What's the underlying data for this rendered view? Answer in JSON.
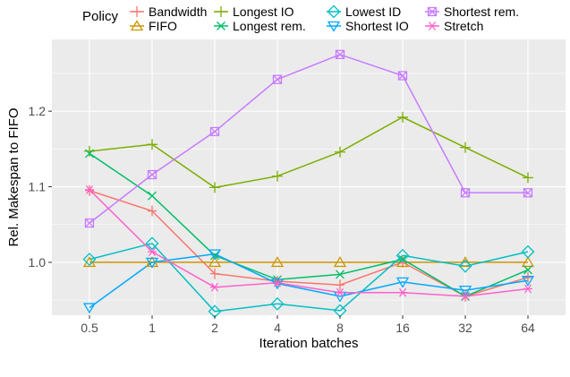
{
  "chart_data": {
    "type": "line",
    "xlabel": "Iteration batches",
    "ylabel": "Rel. Makespan to FIFO",
    "categories": [
      "0.5",
      "1",
      "2",
      "4",
      "8",
      "16",
      "32",
      "64"
    ],
    "ylim": [
      0.93,
      1.295
    ],
    "yticks": [
      1.0,
      1.1,
      1.2
    ],
    "ytick_labels": [
      "1.0",
      "1.1",
      "1.2"
    ],
    "grid": true,
    "legend": {
      "title": "Policy",
      "position": "top"
    },
    "series": [
      {
        "name": "Bandwidth",
        "color": "#F8766D",
        "marker": "plus-bar",
        "values": [
          1.095,
          1.068,
          0.985,
          0.975,
          0.97,
          1.0,
          0.955,
          0.98
        ]
      },
      {
        "name": "FIFO",
        "color": "#CD9600",
        "marker": "triangle-up",
        "values": [
          1.0,
          1.0,
          1.0,
          1.0,
          1.0,
          1.0,
          1.0,
          1.0
        ]
      },
      {
        "name": "Longest IO",
        "color": "#7CAE00",
        "marker": "plus",
        "values": [
          1.147,
          1.156,
          1.099,
          1.114,
          1.146,
          1.192,
          1.152,
          1.112
        ]
      },
      {
        "name": "Longest rem.",
        "color": "#00BE67",
        "marker": "x",
        "values": [
          1.144,
          1.088,
          1.009,
          0.977,
          0.984,
          1.004,
          0.955,
          0.99
        ]
      },
      {
        "name": "Lowest ID",
        "color": "#00BFC4",
        "marker": "diamond",
        "values": [
          1.004,
          1.025,
          0.935,
          0.945,
          0.936,
          1.009,
          0.995,
          1.014
        ]
      },
      {
        "name": "Shortest IO",
        "color": "#00A9FF",
        "marker": "triangle-down",
        "values": [
          0.94,
          1.0,
          1.011,
          0.972,
          0.955,
          0.974,
          0.963,
          0.976
        ]
      },
      {
        "name": "Shortest rem.",
        "color": "#C77CFF",
        "marker": "square-x",
        "values": [
          1.052,
          1.116,
          1.173,
          1.242,
          1.275,
          1.247,
          1.092,
          1.092
        ]
      },
      {
        "name": "Stretch",
        "color": "#FF61CC",
        "marker": "asterisk",
        "values": [
          1.096,
          1.014,
          0.967,
          0.973,
          0.96,
          0.96,
          0.955,
          0.965
        ]
      }
    ]
  }
}
